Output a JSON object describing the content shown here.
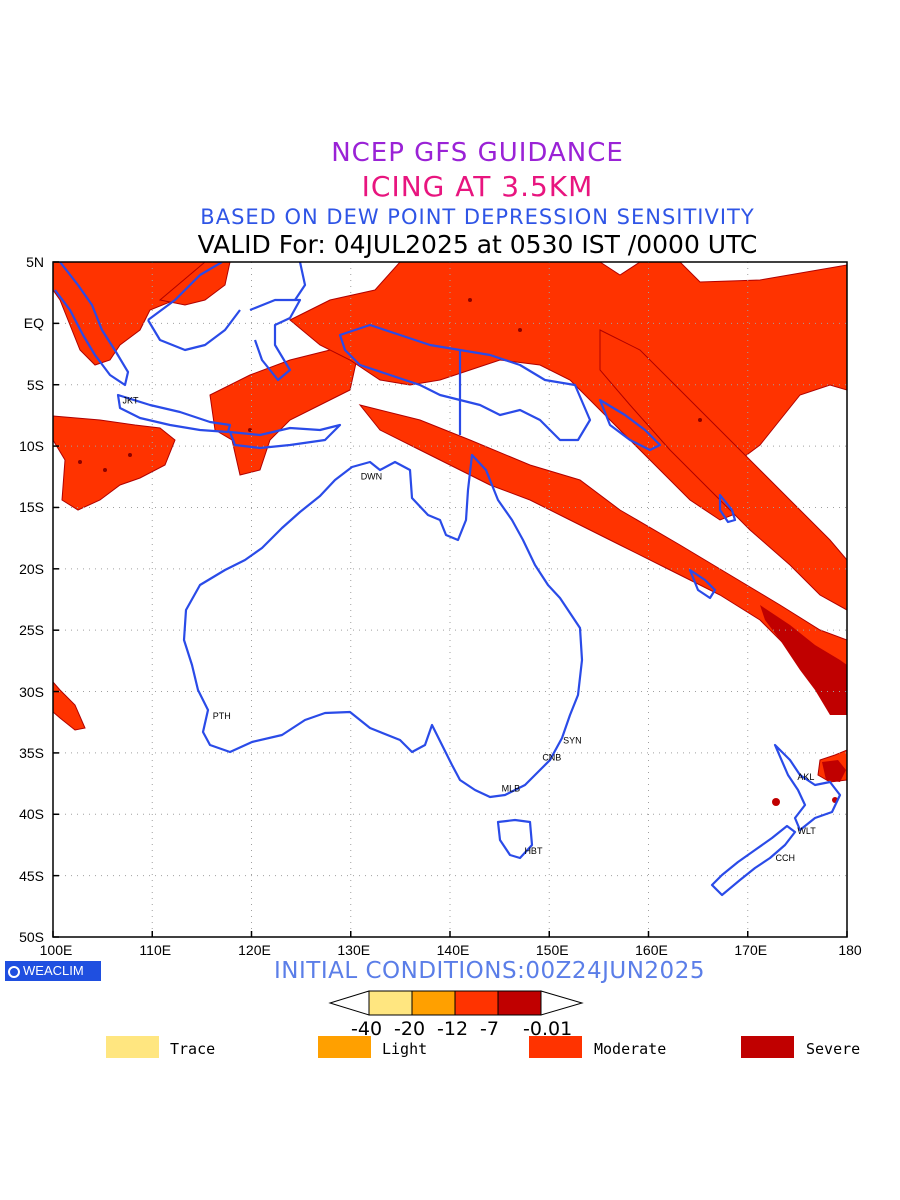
{
  "header": {
    "line1": "NCEP GFS GUIDANCE",
    "line2": "ICING AT 3.5KM",
    "line3": "BASED ON DEW POINT DEPRESSION SENSITIVITY",
    "line4": "VALID For: 04JUL2025 at 0530 IST /0000 UTC"
  },
  "map": {
    "lat_labels": [
      "5N",
      "EQ",
      "5S",
      "10S",
      "15S",
      "20S",
      "25S",
      "30S",
      "35S",
      "40S",
      "45S",
      "50S"
    ],
    "lon_labels": [
      "100E",
      "110E",
      "120E",
      "130E",
      "140E",
      "150E",
      "160E",
      "170E",
      "180"
    ],
    "extent": {
      "lon": [
        100,
        180
      ],
      "lat": [
        -50,
        5
      ]
    },
    "grid": "dotted",
    "coastline_color": "#2a4be8",
    "cities": [
      {
        "code": "JKT",
        "lon": 106.8,
        "lat": -6.2
      },
      {
        "code": "DWN",
        "lon": 130.8,
        "lat": -12.4
      },
      {
        "code": "PTH",
        "lon": 115.9,
        "lat": -31.9
      },
      {
        "code": "SYN",
        "lon": 151.2,
        "lat": -33.9
      },
      {
        "code": "CNB",
        "lon": 149.1,
        "lat": -35.3
      },
      {
        "code": "MLB",
        "lon": 145.0,
        "lat": -37.8
      },
      {
        "code": "HBT",
        "lon": 147.3,
        "lat": -42.9
      },
      {
        "code": "AKL",
        "lon": 174.8,
        "lat": -36.9
      },
      {
        "code": "WLT",
        "lon": 174.8,
        "lat": -41.3
      },
      {
        "code": "CCH",
        "lon": 172.6,
        "lat": -43.5
      }
    ]
  },
  "footer": {
    "brand": "WEACLIM",
    "initial_conditions": "INITIAL CONDITIONS:00Z24JUN2025"
  },
  "colorbar": {
    "labels": [
      "-40",
      "-20",
      "-12",
      "-7",
      "-0.01"
    ],
    "colors": [
      "#ffe680",
      "#ffa000",
      "#ff3300",
      "#c00000"
    ]
  },
  "legend": [
    {
      "label": "Trace",
      "color": "#ffe680"
    },
    {
      "label": "Light",
      "color": "#ffa000"
    },
    {
      "label": "Moderate",
      "color": "#ff3300"
    },
    {
      "label": "Severe",
      "color": "#c00000"
    }
  ]
}
